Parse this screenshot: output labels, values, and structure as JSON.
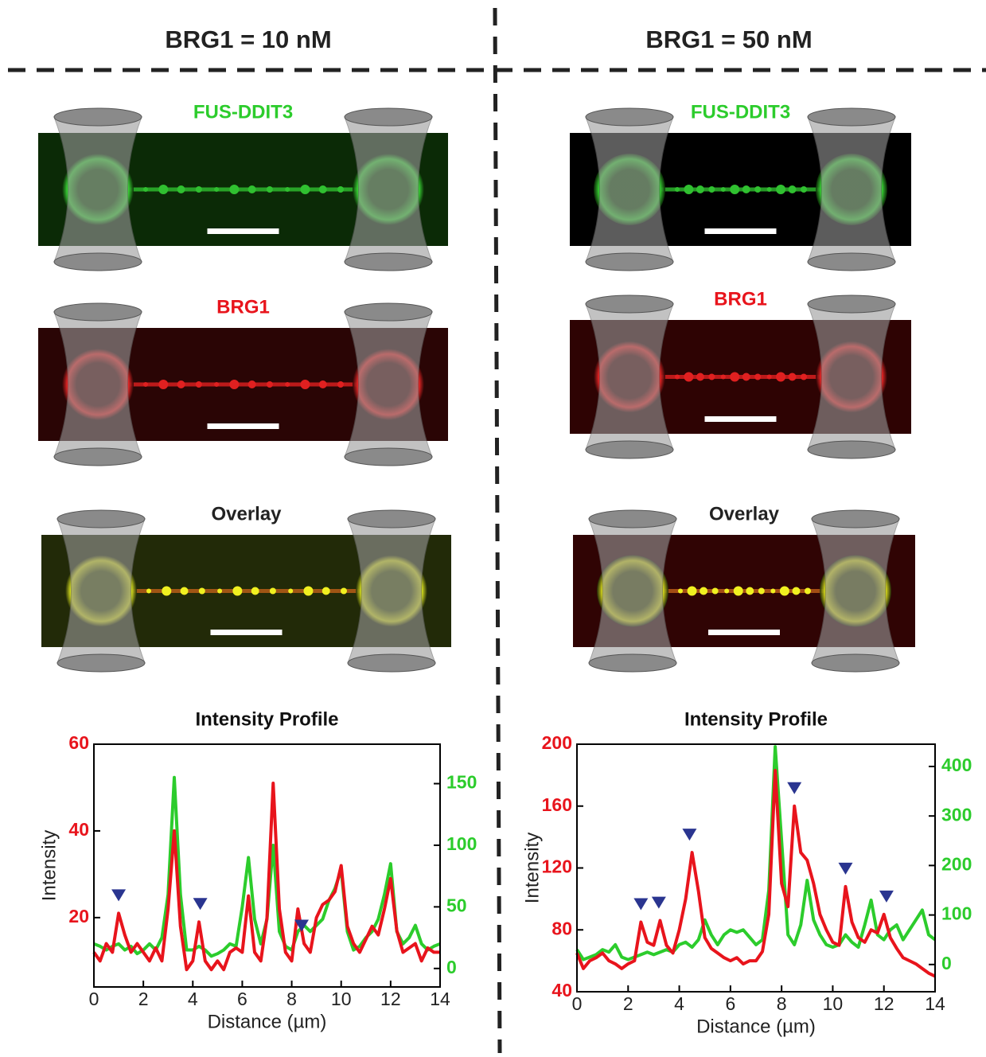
{
  "columns": [
    {
      "title": "BRG1 = 10 nM",
      "panels": [
        "FUS-DDIT3",
        "BRG1",
        "Overlay"
      ]
    },
    {
      "title": "BRG1 = 50 nM",
      "panels": [
        "FUS-DDIT3",
        "BRG1",
        "Overlay"
      ]
    }
  ],
  "chart_data": [
    {
      "type": "line",
      "title": "Intensity Profile",
      "xlabel": "Distance (µm)",
      "ylabel": "Intensity",
      "x": [
        0,
        0.25,
        0.5,
        0.75,
        1,
        1.25,
        1.5,
        1.75,
        2,
        2.25,
        2.5,
        2.75,
        3,
        3.25,
        3.5,
        3.75,
        4,
        4.25,
        4.5,
        4.75,
        5,
        5.25,
        5.5,
        5.75,
        6,
        6.25,
        6.5,
        6.75,
        7,
        7.25,
        7.5,
        7.75,
        8,
        8.25,
        8.5,
        8.75,
        9,
        9.25,
        9.5,
        9.75,
        10,
        10.25,
        10.5,
        10.75,
        11,
        11.25,
        11.5,
        11.75,
        12,
        12.25,
        12.5,
        12.75,
        13,
        13.25,
        13.5,
        13.75,
        14
      ],
      "xlim": [
        0,
        14
      ],
      "xticks": [
        0,
        2,
        4,
        6,
        8,
        10,
        12,
        14
      ],
      "ylim": [
        4,
        60
      ],
      "yticks": [
        20,
        40,
        60
      ],
      "y2lim": [
        -15,
        182
      ],
      "y2ticks": [
        0,
        50,
        100,
        150
      ],
      "series": [
        {
          "color": "#e8141c",
          "values": [
            12,
            10,
            14,
            12,
            21,
            16,
            12,
            14,
            12,
            10,
            13,
            10,
            22,
            40,
            18,
            8,
            10,
            19,
            10,
            8,
            10,
            8,
            12,
            13,
            12,
            25,
            12,
            10,
            20,
            51,
            22,
            12,
            10,
            22,
            14,
            12,
            20,
            23,
            24,
            26,
            32,
            18,
            14,
            12,
            15,
            18,
            16,
            22,
            29,
            17,
            12,
            13,
            14,
            10,
            13,
            12,
            12
          ]
        },
        {
          "color": "#2ccc2c",
          "axis": "y2",
          "values": [
            20,
            18,
            15,
            18,
            20,
            15,
            18,
            12,
            15,
            20,
            15,
            25,
            60,
            155,
            60,
            15,
            15,
            18,
            15,
            10,
            12,
            15,
            20,
            18,
            50,
            90,
            40,
            20,
            40,
            100,
            30,
            18,
            15,
            30,
            35,
            30,
            35,
            40,
            55,
            65,
            80,
            30,
            15,
            18,
            25,
            30,
            40,
            60,
            85,
            30,
            20,
            25,
            35,
            20,
            15,
            18,
            20
          ]
        }
      ],
      "peak_markers": [
        1,
        4.3,
        8.4
      ],
      "marker_color": "#2a3590"
    },
    {
      "type": "line",
      "title": "Intensity Profile",
      "xlabel": "Distance (µm)",
      "ylabel": "Intensity",
      "x": [
        0,
        0.25,
        0.5,
        0.75,
        1,
        1.25,
        1.5,
        1.75,
        2,
        2.25,
        2.5,
        2.75,
        3,
        3.25,
        3.5,
        3.75,
        4,
        4.25,
        4.5,
        4.75,
        5,
        5.25,
        5.5,
        5.75,
        6,
        6.25,
        6.5,
        6.75,
        7,
        7.25,
        7.5,
        7.75,
        8,
        8.25,
        8.5,
        8.75,
        9,
        9.25,
        9.5,
        9.75,
        10,
        10.25,
        10.5,
        10.75,
        11,
        11.25,
        11.5,
        11.75,
        12,
        12.25,
        12.5,
        12.75,
        13,
        13.25,
        13.5,
        13.75,
        14
      ],
      "xlim": [
        0,
        14
      ],
      "xticks": [
        0,
        2,
        4,
        6,
        8,
        10,
        12,
        14
      ],
      "ylim": [
        40,
        200
      ],
      "yticks": [
        40,
        80,
        120,
        160,
        200
      ],
      "y2lim": [
        -55,
        445
      ],
      "y2ticks": [
        0,
        100,
        200,
        300,
        400
      ],
      "series": [
        {
          "color": "#e8141c",
          "values": [
            65,
            55,
            60,
            62,
            65,
            60,
            58,
            55,
            58,
            60,
            85,
            72,
            70,
            86,
            70,
            65,
            80,
            100,
            130,
            105,
            75,
            68,
            65,
            62,
            60,
            62,
            58,
            60,
            60,
            66,
            90,
            183,
            110,
            95,
            160,
            130,
            125,
            110,
            90,
            80,
            72,
            70,
            108,
            85,
            75,
            72,
            80,
            78,
            90,
            75,
            68,
            62,
            60,
            58,
            55,
            52,
            50
          ]
        },
        {
          "color": "#2ccc2c",
          "axis": "y2",
          "values": [
            30,
            10,
            15,
            20,
            30,
            25,
            40,
            15,
            10,
            15,
            20,
            25,
            20,
            25,
            30,
            25,
            40,
            45,
            35,
            50,
            90,
            60,
            40,
            60,
            70,
            65,
            70,
            55,
            40,
            50,
            150,
            440,
            250,
            60,
            40,
            80,
            170,
            90,
            60,
            40,
            35,
            40,
            60,
            45,
            35,
            80,
            130,
            60,
            50,
            70,
            80,
            50,
            70,
            90,
            110,
            60,
            50
          ]
        }
      ],
      "peak_markers": [
        2.5,
        3.2,
        4.4,
        8.5,
        10.5,
        12.1
      ],
      "marker_color": "#2a3590"
    }
  ]
}
